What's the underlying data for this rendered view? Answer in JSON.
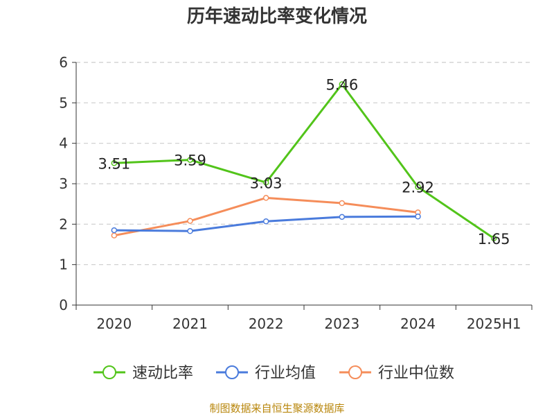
{
  "chart_data": {
    "type": "line",
    "title": "历年速动比率变化情况",
    "categories": [
      "2020",
      "2021",
      "2022",
      "2023",
      "2024",
      "2025H1"
    ],
    "ylim": [
      0,
      6
    ],
    "yticks": [
      0,
      1,
      2,
      3,
      4,
      5,
      6
    ],
    "grid": true,
    "legend_position": "bottom",
    "series": [
      {
        "name": "速动比率",
        "color": "#52c41a",
        "values": [
          3.51,
          3.59,
          3.03,
          5.46,
          2.92,
          1.65
        ],
        "labels": [
          "3.51",
          "3.59",
          "3.03",
          "5.46",
          "2.92",
          "1.65"
        ]
      },
      {
        "name": "行业均值",
        "color": "#4a7bdc",
        "values": [
          1.85,
          1.83,
          2.07,
          2.18,
          2.19,
          null
        ]
      },
      {
        "name": "行业中位数",
        "color": "#f58d5a",
        "values": [
          1.72,
          2.08,
          2.65,
          2.52,
          2.29,
          null
        ]
      }
    ]
  },
  "footer": {
    "source": "制图数据来自恒生聚源数据库"
  }
}
